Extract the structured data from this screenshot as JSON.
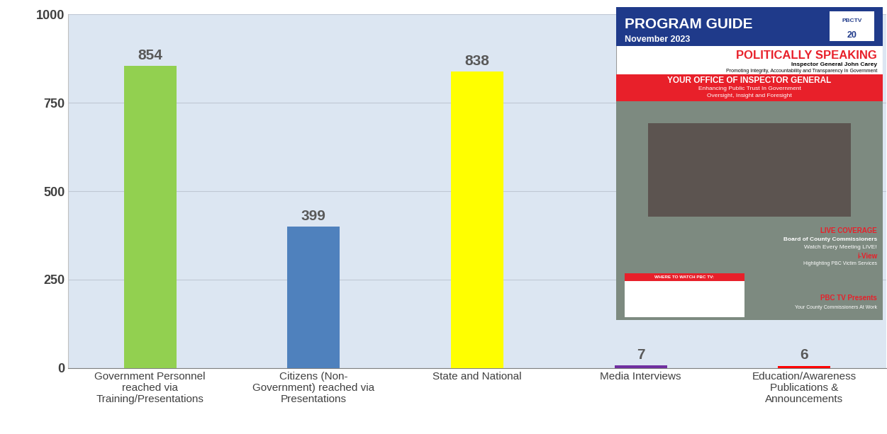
{
  "chart_data": {
    "type": "bar",
    "categories": [
      "Government Personnel reached via Training/Presentations",
      "Citizens (Non-Government) reached via Presentations",
      "State and National",
      "Media Interviews",
      "Education/Awareness Publications & Announcements"
    ],
    "values": [
      854,
      399,
      838,
      7,
      6
    ],
    "colors": [
      "#92d050",
      "#4f81bd",
      "#ffff00",
      "#7030a0",
      "#ff0000"
    ],
    "ylim": [
      0,
      1000
    ],
    "yticks": [
      0,
      250,
      500,
      750,
      1000
    ],
    "grid": true,
    "data_labels": true,
    "annotations": [
      "PROGRAM GUIDE",
      "November 2023",
      "PBCTV",
      "20",
      "POLITICALLY SPEAKING",
      "Inspector General John Carey",
      "Promoting Integrity, Accountability and Transparency In Government",
      "YOUR OFFICE OF INSPECTOR GENERAL",
      "Enhancing Public Trust In Government",
      "Oversight, Insight and Foresight",
      "LIVE COVERAGE",
      "Board of County Commissioners",
      "Watch Every Meeting LIVE!",
      "i-View",
      "Highlighting PBC Victim Services",
      "WHERE TO WATCH PBC TV:",
      "PBC TV Presents",
      "Your County Commissioners At Work"
    ]
  }
}
